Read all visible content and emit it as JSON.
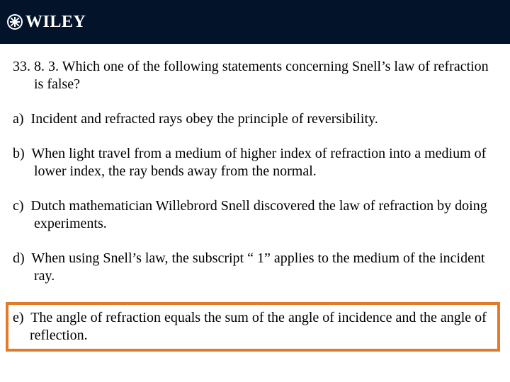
{
  "header": {
    "brand": "WILEY",
    "background_color": "#02132a",
    "text_color": "#ffffff"
  },
  "content": {
    "question_number": "33. 8. 3.",
    "question_text": "Which one of the following statements concerning Snell’s law of refraction is false?",
    "options": [
      {
        "label": "a)",
        "text": "Incident and refracted rays obey the principle of reversibility.",
        "highlighted": false
      },
      {
        "label": "b)",
        "text": "When light travel from a medium of higher index of refraction into a medium of lower index, the ray bends away from the normal.",
        "highlighted": false
      },
      {
        "label": "c)",
        "text": "Dutch mathematician Willebrord Snell discovered the law of refraction by doing experiments.",
        "highlighted": false
      },
      {
        "label": "d)",
        "text": "When using Snell’s law, the subscript “ 1” applies to the medium of the incident ray.",
        "highlighted": false
      },
      {
        "label": "e)",
        "text": "The angle of refraction equals the sum of the angle of incidence and the angle of reflection.",
        "highlighted": true
      }
    ],
    "highlight_border_color": "#e07b2a",
    "font_family": "Times New Roman",
    "font_size_pt": 15,
    "text_color": "#000000"
  }
}
